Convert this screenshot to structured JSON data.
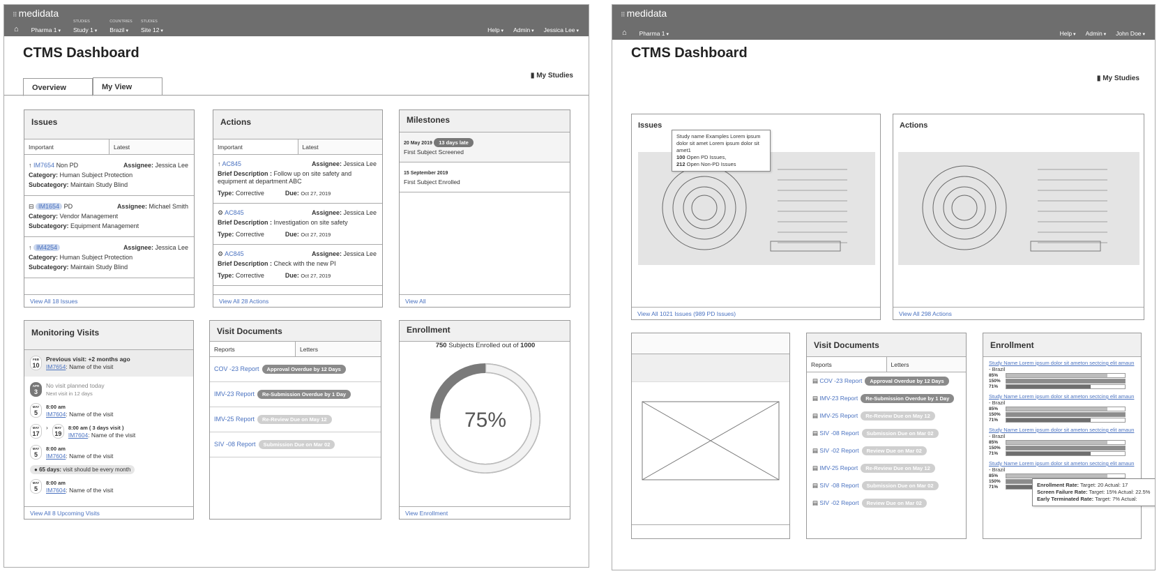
{
  "left": {
    "brand": "medidata",
    "nav": [
      {
        "label": "Pharma 1"
      },
      {
        "caption": "STUDIES",
        "label": "Study 1"
      },
      {
        "caption": "COUNTRIES",
        "label": "Brazil"
      },
      {
        "caption": "STUDIES",
        "label": "Site 12"
      }
    ],
    "nav_right": [
      "Help",
      "Admin",
      "Jessica Lee"
    ],
    "title": "CTMS Dashboard",
    "tabs": [
      "Overview",
      "My View"
    ],
    "my_studies": "My Studies",
    "issues": {
      "title": "Issues",
      "tabs": [
        "Important",
        "Latest"
      ],
      "labels": {
        "assignee": "Assignee:",
        "category": "Category:",
        "subcategory": "Subcategory:"
      },
      "items": [
        {
          "id": "IM7654",
          "kind": "Non PD",
          "assignee": "Jessica Lee",
          "category": "Human Subject Protection",
          "subcategory": "Maintain Study Blind"
        },
        {
          "id": "IM1654",
          "kind": "PD",
          "assignee": "Michael Smith",
          "category": "Vendor Management",
          "subcategory": "Equipment Management"
        },
        {
          "id": "IM4254",
          "assignee": "Jessica Lee",
          "category": "Human Subject Protection",
          "subcategory": "Maintain Study Blind"
        }
      ],
      "footer": "View All 18 Issues"
    },
    "actions": {
      "title": "Actions",
      "tabs": [
        "Important",
        "Latest"
      ],
      "labels": {
        "assignee": "Assignee:",
        "description": "Brief Description :",
        "type": "Type:",
        "due": "Due:"
      },
      "items": [
        {
          "id": "AC845",
          "assignee": "Jessica Lee",
          "description": "Follow up on site safety and equipment at department ABC",
          "type": "Corrective",
          "due": "Oct 27, 2019"
        },
        {
          "id": "AC845",
          "assignee": "Jessica Lee",
          "description": "Investigation on site safety",
          "type": "Corrective",
          "due": "Oct 27, 2019"
        },
        {
          "id": "AC845",
          "assignee": "Jessica Lee",
          "description": "Check with the new PI",
          "type": "Corrective",
          "due": "Oct 27, 2019"
        }
      ],
      "footer": "View All 28 Actions"
    },
    "milestones": {
      "title": "Milestones",
      "items": [
        {
          "date": "20 May 2019",
          "badge": "13 days late",
          "text": "First Subject Screened"
        },
        {
          "date": "15 September 2019",
          "text": "First Subject Enrolled"
        }
      ],
      "footer": "View All"
    },
    "monitoring": {
      "title": "Monitoring Visits",
      "previous": {
        "month": "FEB",
        "day": "10",
        "text": "Previous visit: +2 months ago",
        "id": "IM7654",
        "name": ": Name of the visit"
      },
      "today": {
        "month": "APR",
        "day": "3",
        "line1": "No visit planned today",
        "line2": "Next visit in 12 days"
      },
      "visits": [
        {
          "month": "MAY",
          "day": "5",
          "time": "8:00 am",
          "id": "IM7604",
          "name": ": Name of the visit"
        },
        {
          "month": "MAY",
          "day": "17",
          "month2": "MAY",
          "day2": "19",
          "time": "8:00 am ( 3 days visit )",
          "id": "IM7604",
          "name": ": Name of the visit"
        },
        {
          "month": "MAY",
          "day": "5",
          "time": "8:00 am",
          "id": "IM7604",
          "name": ": Name of the visit"
        }
      ],
      "note": {
        "bold": "65 days:",
        "text": "visit should be every month"
      },
      "visits_after": [
        {
          "month": "MAY",
          "day": "5",
          "time": "8:00 am",
          "id": "IM7604",
          "name": ": Name of the visit"
        }
      ],
      "footer": "View All 8 Upcoming Visits"
    },
    "visit_documents": {
      "title": "Visit Documents",
      "tabs": [
        "Reports",
        "Letters"
      ],
      "docs": [
        {
          "name": "COV -23 Report",
          "status": "Approval Overdue by 12 Days",
          "color": "#8a8a8a"
        },
        {
          "name": "IMV-23 Report",
          "status": "Re-Submission Overdue by 1 Day",
          "color": "#8a8a8a"
        },
        {
          "name": "IMV-25 Report",
          "status": "Re-Review Due on May 12",
          "color": "#cfcfcf"
        },
        {
          "name": "SIV -08 Report",
          "status": "Submission Due on Mar 02",
          "color": "#cfcfcf"
        }
      ]
    },
    "enrollment": {
      "title": "Enrollment",
      "donut": {
        "value": 75,
        "label": "75%"
      },
      "enrolled": 750,
      "text": "Subjects Enrolled out of",
      "total": 1000,
      "footer": "View Enrollment"
    }
  },
  "right": {
    "brand": "medidata",
    "nav": [
      {
        "label": "Pharma 1"
      }
    ],
    "nav_right": [
      "Help",
      "Admin",
      "John Doe"
    ],
    "title": "CTMS Dashboard",
    "my_studies": "My Studies",
    "issues": {
      "title": "Issues",
      "tooltip": {
        "title": "Study name Examples Lorem ipsum dolor sit amet Lorem ipsum dolor sit amet1",
        "lines": [
          {
            "count": 100,
            "text": "Open PD Issues,"
          },
          {
            "count": 212,
            "text": "Open Non-PD Issues"
          }
        ]
      },
      "footer": "View All 1021 Issues (989 PD Issues)"
    },
    "actions": {
      "title": "Actions",
      "footer": "View All 298 Actions"
    },
    "visit_documents": {
      "title": "Visit Documents",
      "tabs": [
        "Reports",
        "Letters"
      ],
      "docs": [
        {
          "name": "COV -23 Report",
          "status": "Approval Overdue by 12 Days",
          "color": "#8a8a8a"
        },
        {
          "name": "IMV-23 Report",
          "status": "Re-Submission Overdue by 1 Day",
          "color": "#8a8a8a"
        },
        {
          "name": "IMV-25 Report",
          "status": "Re-Review Due on May 12",
          "color": "#cfcfcf"
        },
        {
          "name": "SIV -08 Report",
          "status": "Submission Due on Mar 02",
          "color": "#cfcfcf"
        },
        {
          "name": "SIV -02 Report",
          "status": "Review Due on Mar 02",
          "color": "#cfcfcf"
        },
        {
          "name": "IMV-25 Report",
          "status": "Re-Review Due on May 12",
          "color": "#cfcfcf"
        },
        {
          "name": "SIV -08 Report",
          "status": "Submission Due on Mar 02",
          "color": "#cfcfcf"
        },
        {
          "name": "SIV -02 Report",
          "status": "Review Due on Mar 02",
          "color": "#cfcfcf"
        }
      ]
    },
    "enrollment": {
      "title": "Enrollment",
      "bar_colors": [
        "#bdbdbd",
        "#8c8c8c",
        "#6e6e6e"
      ],
      "studies": [
        {
          "name": "Study Name Lorem ipsum dolor sit ameton sectcing elit amaun",
          "country": "- Brazil",
          "bars": [
            {
              "value": 85,
              "label": "85%"
            },
            {
              "value": 150,
              "label": "150%"
            },
            {
              "value": 71,
              "label": "71%"
            }
          ]
        },
        {
          "name": "Study Name Lorem ipsum dolor sit ameton sectcing elit amaun",
          "country": "- Brazil",
          "bars": [
            {
              "value": 85,
              "label": "85%"
            },
            {
              "value": 150,
              "label": "150%"
            },
            {
              "value": 71,
              "label": "71%"
            }
          ]
        },
        {
          "name": "Study Name Lorem ipsum dolor sit ameton sectcing elit amaun",
          "country": "- Brazil",
          "bars": [
            {
              "value": 85,
              "label": "85%"
            },
            {
              "value": 150,
              "label": "150%"
            },
            {
              "value": 71,
              "label": "71%"
            }
          ]
        },
        {
          "name": "Study Name Lorem ipsum dolor sit ameton sectcing elit amaun",
          "country": "- Brazil",
          "bars": [
            {
              "value": 85,
              "label": "85%"
            },
            {
              "value": 150,
              "label": "150%"
            },
            {
              "value": 71,
              "label": "71%"
            }
          ]
        }
      ],
      "tooltip": [
        {
          "label": "Enrollment Rate:",
          "text": "Target: 20   Actual: 17"
        },
        {
          "label": "Screen Failure Rate:",
          "text": "Target: 15%   Actual: 22.5%"
        },
        {
          "label": "Early Terminated Rate:",
          "text": "Target: 7%   Actual:"
        }
      ]
    }
  }
}
